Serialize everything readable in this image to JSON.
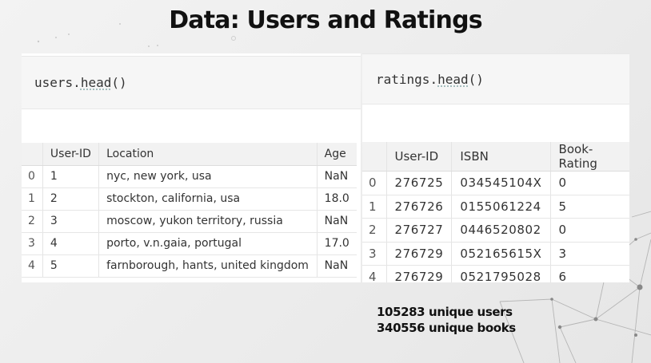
{
  "title": "Data: Users and Ratings",
  "users_panel": {
    "code_obj": "users",
    "code_method": "head",
    "code_suffix": "()",
    "columns": [
      "",
      "User-ID",
      "Location",
      "Age"
    ],
    "rows": [
      {
        "idx": "0",
        "user_id": "1",
        "location": "nyc, new york, usa",
        "age": "NaN"
      },
      {
        "idx": "1",
        "user_id": "2",
        "location": "stockton, california, usa",
        "age": "18.0"
      },
      {
        "idx": "2",
        "user_id": "3",
        "location": "moscow, yukon territory, russia",
        "age": "NaN"
      },
      {
        "idx": "3",
        "user_id": "4",
        "location": "porto, v.n.gaia, portugal",
        "age": "17.0"
      },
      {
        "idx": "4",
        "user_id": "5",
        "location": "farnborough, hants, united kingdom",
        "age": "NaN"
      }
    ]
  },
  "ratings_panel": {
    "code_obj": "ratings",
    "code_method": "head",
    "code_suffix": "()",
    "columns": [
      "",
      "User-ID",
      "ISBN",
      "Book-Rating"
    ],
    "rows": [
      {
        "idx": "0",
        "user_id": "276725",
        "isbn": "034545104X",
        "rating": "0"
      },
      {
        "idx": "1",
        "user_id": "276726",
        "isbn": "0155061224",
        "rating": "5"
      },
      {
        "idx": "2",
        "user_id": "276727",
        "isbn": "0446520802",
        "rating": "0"
      },
      {
        "idx": "3",
        "user_id": "276729",
        "isbn": "052165615X",
        "rating": "3"
      },
      {
        "idx": "4",
        "user_id": "276729",
        "isbn": "0521795028",
        "rating": "6"
      }
    ]
  },
  "stats": {
    "users": "105283 unique users",
    "books": "340556 unique books"
  }
}
